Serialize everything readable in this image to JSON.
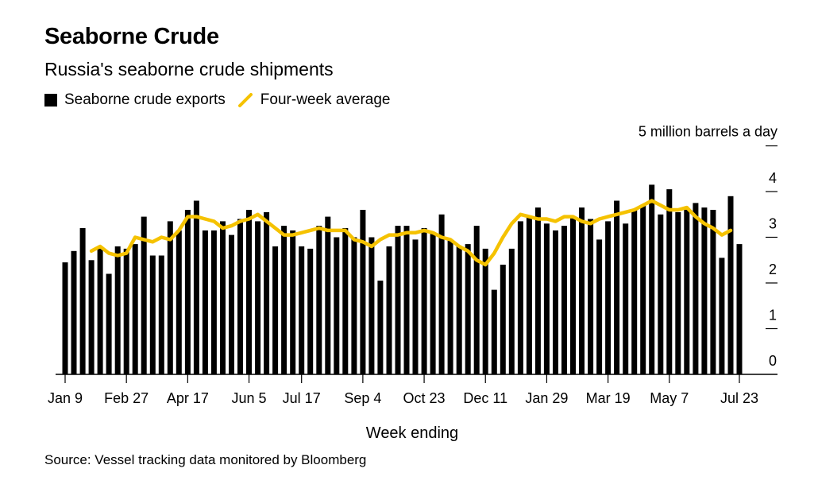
{
  "header": {
    "title": "Seaborne Crude",
    "subtitle": "Russia's seaborne crude shipments"
  },
  "legend": {
    "bars_label": "Seaborne crude exports",
    "line_label": "Four-week average"
  },
  "source": "Source: Vessel tracking data monitored by Bloomberg",
  "colors": {
    "bars": "#000000",
    "line": "#F5C200"
  },
  "chart_data": {
    "type": "bar",
    "title": "Seaborne Crude",
    "subtitle": "Russia's seaborne crude shipments",
    "xlabel": "Week ending",
    "ylabel": "5 million barrels a day",
    "ylim": [
      0,
      5
    ],
    "yticks": [
      "0",
      "1",
      "2",
      "3",
      "4"
    ],
    "x_tick_labels": [
      "Jan 9",
      "Feb 27",
      "Apr 17",
      "Jun 5",
      "Jul 17",
      "Sep 4",
      "Oct 23",
      "Dec 11",
      "Jan 29",
      "Mar 19",
      "May 7",
      "Jul 23"
    ],
    "x_tick_weeks": [
      0,
      7,
      14,
      21,
      27,
      34,
      41,
      48,
      55,
      62,
      69,
      77
    ],
    "grid": false,
    "legend_position": "top-left",
    "series": [
      {
        "name": "Seaborne crude exports",
        "type": "bar",
        "values": [
          2.45,
          2.7,
          3.2,
          2.5,
          2.8,
          2.2,
          2.8,
          2.75,
          2.85,
          3.45,
          2.6,
          2.6,
          3.35,
          3.15,
          3.6,
          3.8,
          3.15,
          3.15,
          3.35,
          3.05,
          3.4,
          3.6,
          3.35,
          3.55,
          2.8,
          3.25,
          3.15,
          2.8,
          2.75,
          3.25,
          3.45,
          3.0,
          3.2,
          3.0,
          3.6,
          3.0,
          2.05,
          2.8,
          3.25,
          3.25,
          2.95,
          3.2,
          3.1,
          3.5,
          2.95,
          2.8,
          2.85,
          3.25,
          2.75,
          1.85,
          2.4,
          2.75,
          3.35,
          3.45,
          3.65,
          3.3,
          3.15,
          3.25,
          3.45,
          3.65,
          3.4,
          2.95,
          3.35,
          3.8,
          3.3,
          3.6,
          3.7,
          4.15,
          3.5,
          4.05,
          3.55,
          3.6,
          3.75,
          3.65,
          3.6,
          2.55,
          3.9,
          2.85
        ]
      },
      {
        "name": "Four-week average",
        "type": "line",
        "start_index": 3,
        "values": [
          2.7,
          2.8,
          2.65,
          2.6,
          2.65,
          3.0,
          2.95,
          2.9,
          3.0,
          2.95,
          3.15,
          3.45,
          3.45,
          3.4,
          3.35,
          3.2,
          3.25,
          3.35,
          3.4,
          3.5,
          3.35,
          3.2,
          3.05,
          3.05,
          3.1,
          3.15,
          3.2,
          3.15,
          3.15,
          3.15,
          2.95,
          2.9,
          2.8,
          2.95,
          3.05,
          3.05,
          3.1,
          3.1,
          3.15,
          3.1,
          3.0,
          2.95,
          2.8,
          2.7,
          2.5,
          2.4,
          2.65,
          3.0,
          3.3,
          3.5,
          3.45,
          3.4,
          3.4,
          3.35,
          3.45,
          3.45,
          3.35,
          3.3,
          3.4,
          3.45,
          3.5,
          3.55,
          3.6,
          3.7,
          3.8,
          3.7,
          3.6,
          3.6,
          3.65,
          3.45,
          3.3,
          3.2,
          3.05,
          3.15
        ]
      }
    ]
  }
}
